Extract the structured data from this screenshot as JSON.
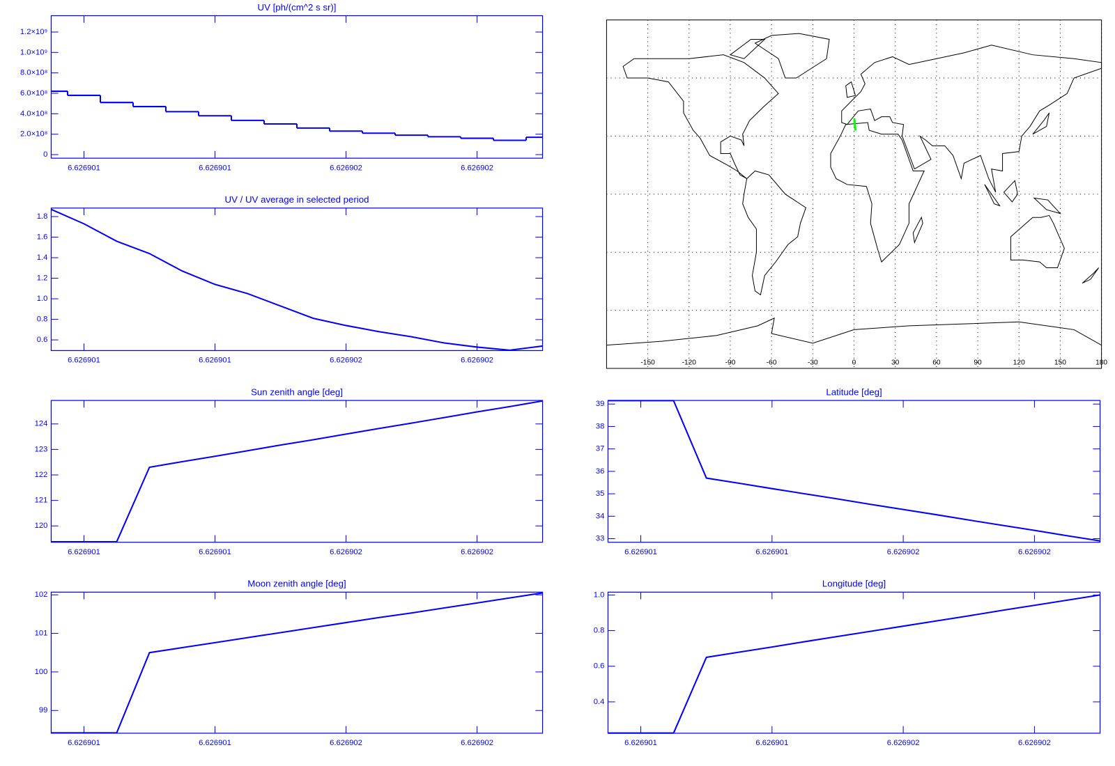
{
  "chart_data": [
    {
      "type": "step",
      "title": "UV [ph/(cm^2 s sr)]",
      "color": "#0000ff",
      "x": [
        6.6269007,
        6.6269008,
        6.6269009,
        6.626901,
        6.6269011,
        6.6269012,
        6.6269013,
        6.6269014,
        6.6269015,
        6.6269016,
        6.6269017,
        6.6269018,
        6.6269019,
        6.626902,
        6.6269021,
        6.6269022
      ],
      "values": [
        620000000,
        580000000,
        510000000,
        470000000,
        420000000,
        380000000,
        335000000,
        300000000,
        260000000,
        230000000,
        210000000,
        190000000,
        175000000,
        160000000,
        140000000,
        170000000
      ],
      "xlim": [
        6.6269007,
        6.6269022
      ],
      "xticks": [
        {
          "value": 6.6269008,
          "label": "6.626901"
        },
        {
          "value": 6.6269012,
          "label": "6.626901"
        },
        {
          "value": 6.6269016,
          "label": "6.626902"
        },
        {
          "value": 6.626902,
          "label": "6.626902"
        }
      ],
      "ylim": [
        -35000000,
        1360000000
      ],
      "yticks": [
        0,
        {
          "value": 200000000,
          "label": "2.0×10⁸"
        },
        {
          "value": 400000000,
          "label": "4.0×10⁸"
        },
        {
          "value": 600000000,
          "label": "6.0×10⁸"
        },
        {
          "value": 800000000,
          "label": "8.0×10⁸"
        },
        {
          "value": 1000000000,
          "label": "1.0×10⁹"
        },
        {
          "value": 1200000000,
          "label": "1.2×10⁹"
        }
      ]
    },
    {
      "type": "map",
      "xlim": [
        -180,
        180
      ],
      "ylim": [
        -90,
        90
      ],
      "xticks": [
        -150,
        -120,
        -90,
        -60,
        -30,
        0,
        30,
        60,
        90,
        120,
        150,
        180
      ],
      "ygrid": [
        -60,
        -30,
        0,
        30,
        60
      ],
      "track_color": "#00ff00"
    },
    {
      "type": "line",
      "title": "UV / UV average in selected period",
      "color": "#0000ff",
      "x": [
        6.6269007,
        6.6269008,
        6.6269009,
        6.626901,
        6.6269011,
        6.6269012,
        6.6269013,
        6.6269014,
        6.6269015,
        6.6269016,
        6.6269017,
        6.6269018,
        6.6269019,
        6.626902,
        6.6269021,
        6.6269022
      ],
      "values": [
        1.87,
        1.73,
        1.56,
        1.44,
        1.27,
        1.14,
        1.05,
        0.93,
        0.81,
        0.74,
        0.68,
        0.63,
        0.57,
        0.53,
        0.5,
        0.54
      ],
      "xlim": [
        6.6269007,
        6.6269022
      ],
      "xticks": [
        {
          "value": 6.6269008,
          "label": "6.626901"
        },
        {
          "value": 6.6269012,
          "label": "6.626901"
        },
        {
          "value": 6.6269016,
          "label": "6.626902"
        },
        {
          "value": 6.626902,
          "label": "6.626902"
        }
      ],
      "ylim": [
        0.496,
        1.883
      ],
      "yticks": [
        0.6,
        0.8,
        {
          "value": 1,
          "label": "1.0"
        },
        1.2,
        1.4,
        1.6,
        1.8
      ]
    },
    {
      "type": "line",
      "title": "Sun zenith angle [deg]",
      "color": "#0000ff",
      "x": [
        6.6269007,
        6.6269008,
        6.6269009,
        6.626901,
        6.6269011,
        6.6269012,
        6.6269013,
        6.6269014,
        6.6269015,
        6.6269016,
        6.6269017,
        6.6269018,
        6.6269019,
        6.626902,
        6.6269021,
        6.6269022
      ],
      "values": [
        119.38,
        119.38,
        119.38,
        122.3,
        122.52,
        122.73,
        122.95,
        123.17,
        123.38,
        123.6,
        123.82,
        124.03,
        124.25,
        124.47,
        124.68,
        124.9
      ],
      "xlim": [
        6.6269007,
        6.6269022
      ],
      "xticks": [
        {
          "value": 6.6269008,
          "label": "6.626901"
        },
        {
          "value": 6.6269012,
          "label": "6.626901"
        },
        {
          "value": 6.6269016,
          "label": "6.626902"
        },
        {
          "value": 6.626902,
          "label": "6.626902"
        }
      ],
      "ylim": [
        119.36,
        124.92
      ],
      "yticks": [
        120,
        121,
        122,
        123,
        124
      ]
    },
    {
      "type": "line",
      "title": "Latitude [deg]",
      "color": "#0000ff",
      "x": [
        6.6269007,
        6.6269008,
        6.6269009,
        6.626901,
        6.6269011,
        6.6269012,
        6.6269013,
        6.6269014,
        6.6269015,
        6.6269016,
        6.6269017,
        6.6269018,
        6.6269019,
        6.626902,
        6.6269021,
        6.6269022
      ],
      "values": [
        39.15,
        39.15,
        39.15,
        35.7,
        35.47,
        35.23,
        35.0,
        34.77,
        34.53,
        34.3,
        34.07,
        33.83,
        33.6,
        33.37,
        33.13,
        32.9
      ],
      "xlim": [
        6.6269007,
        6.6269022
      ],
      "xticks": [
        {
          "value": 6.6269008,
          "label": "6.626901"
        },
        {
          "value": 6.6269012,
          "label": "6.626901"
        },
        {
          "value": 6.6269016,
          "label": "6.626902"
        },
        {
          "value": 6.626902,
          "label": "6.626902"
        }
      ],
      "ylim": [
        32.84,
        39.16
      ],
      "yticks": [
        33,
        34,
        35,
        36,
        37,
        38,
        39
      ]
    },
    {
      "type": "line",
      "title": "Moon zenith angle [deg]",
      "color": "#0000ff",
      "x": [
        6.6269007,
        6.6269008,
        6.6269009,
        6.626901,
        6.6269011,
        6.6269012,
        6.6269013,
        6.6269014,
        6.6269015,
        6.6269016,
        6.6269017,
        6.6269018,
        6.6269019,
        6.626902,
        6.6269021,
        6.6269022
      ],
      "values": [
        98.42,
        98.42,
        98.42,
        100.5,
        100.63,
        100.76,
        100.89,
        101.02,
        101.15,
        101.28,
        101.41,
        101.53,
        101.66,
        101.79,
        101.92,
        102.05
      ],
      "xlim": [
        6.6269007,
        6.6269022
      ],
      "xticks": [
        {
          "value": 6.6269008,
          "label": "6.626901"
        },
        {
          "value": 6.6269012,
          "label": "6.626901"
        },
        {
          "value": 6.6269016,
          "label": "6.626902"
        },
        {
          "value": 6.626902,
          "label": "6.626902"
        }
      ],
      "ylim": [
        98.41,
        102.07
      ],
      "yticks": [
        99,
        100,
        101,
        102
      ]
    },
    {
      "type": "line",
      "title": "Longitude [deg]",
      "color": "#0000ff",
      "x": [
        6.6269007,
        6.6269008,
        6.6269009,
        6.626901,
        6.6269011,
        6.6269012,
        6.6269013,
        6.6269014,
        6.6269015,
        6.6269016,
        6.6269017,
        6.6269018,
        6.6269019,
        6.626902,
        6.6269021,
        6.6269022
      ],
      "values": [
        0.225,
        0.225,
        0.225,
        0.65,
        0.679,
        0.708,
        0.738,
        0.767,
        0.796,
        0.825,
        0.854,
        0.883,
        0.913,
        0.942,
        0.971,
        1.0
      ],
      "xlim": [
        6.6269007,
        6.6269022
      ],
      "xticks": [
        {
          "value": 6.6269008,
          "label": "6.626901"
        },
        {
          "value": 6.6269012,
          "label": "6.626901"
        },
        {
          "value": 6.6269016,
          "label": "6.626902"
        },
        {
          "value": 6.626902,
          "label": "6.626902"
        }
      ],
      "ylim": [
        0.224,
        1.016
      ],
      "yticks": [
        0.4,
        0.6,
        0.8,
        {
          "value": 1,
          "label": "1.0"
        }
      ]
    }
  ]
}
